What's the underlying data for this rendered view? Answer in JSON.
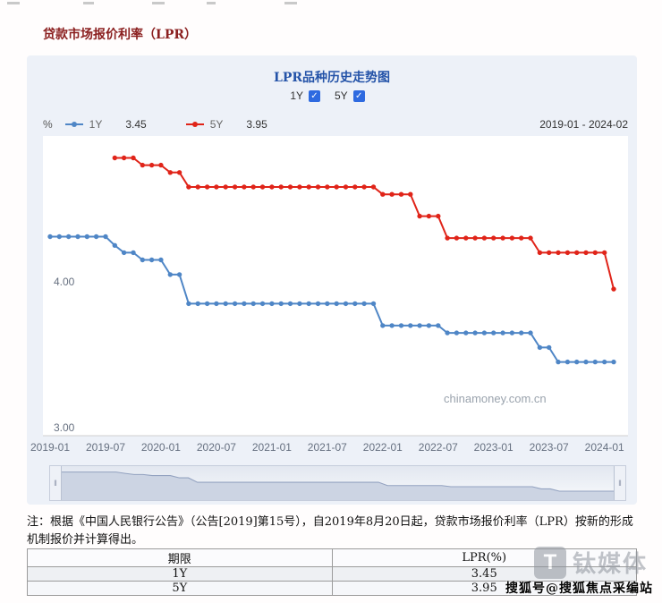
{
  "page": {
    "title": "贷款市场报价利率（LPR）",
    "note": "注：根据《中国人民银行公告》（公告[2019]第15号），自2019年8月20日起，贷款市场报价利率（LPR）按新的形成机制报价并计算得出。"
  },
  "chart": {
    "title": "LPR品种历史走势图",
    "unit": "%",
    "checkboxes": [
      {
        "label": "1Y",
        "checked": true
      },
      {
        "label": "5Y",
        "checked": true
      }
    ],
    "legend": [
      {
        "label": "1Y",
        "value": "3.45",
        "color": "#4f86c6"
      },
      {
        "label": "5Y",
        "value": "3.95",
        "color": "#e02419"
      }
    ],
    "date_range": "2019-01 - 2024-02",
    "watermark": "chinamoney.com.cn"
  },
  "chart_data": {
    "type": "line",
    "title": "LPR品种历史走势图",
    "xlabel": "",
    "ylabel": "%",
    "ylim": [
      2.95,
      5.0
    ],
    "y_ticks": [
      4.0,
      3.0
    ],
    "x_tick_labels": [
      "2019-01",
      "2019-07",
      "2020-01",
      "2020-07",
      "2021-01",
      "2021-07",
      "2022-01",
      "2022-07",
      "2023-01",
      "2023-07",
      "2024-01"
    ],
    "x": [
      "2019-01",
      "2019-02",
      "2019-03",
      "2019-04",
      "2019-05",
      "2019-06",
      "2019-07",
      "2019-08",
      "2019-09",
      "2019-10",
      "2019-11",
      "2019-12",
      "2020-01",
      "2020-02",
      "2020-03",
      "2020-04",
      "2020-05",
      "2020-06",
      "2020-07",
      "2020-08",
      "2020-09",
      "2020-10",
      "2020-11",
      "2020-12",
      "2021-01",
      "2021-02",
      "2021-03",
      "2021-04",
      "2021-05",
      "2021-06",
      "2021-07",
      "2021-08",
      "2021-09",
      "2021-10",
      "2021-11",
      "2021-12",
      "2022-01",
      "2022-02",
      "2022-03",
      "2022-04",
      "2022-05",
      "2022-06",
      "2022-07",
      "2022-08",
      "2022-09",
      "2022-10",
      "2022-11",
      "2022-12",
      "2023-01",
      "2023-02",
      "2023-03",
      "2023-04",
      "2023-05",
      "2023-06",
      "2023-07",
      "2023-08",
      "2023-09",
      "2023-10",
      "2023-11",
      "2023-12",
      "2024-01",
      "2024-02"
    ],
    "series": [
      {
        "name": "1Y",
        "color": "#4f86c6",
        "values": [
          4.31,
          4.31,
          4.31,
          4.31,
          4.31,
          4.31,
          4.31,
          4.25,
          4.2,
          4.2,
          4.15,
          4.15,
          4.15,
          4.05,
          4.05,
          3.85,
          3.85,
          3.85,
          3.85,
          3.85,
          3.85,
          3.85,
          3.85,
          3.85,
          3.85,
          3.85,
          3.85,
          3.85,
          3.85,
          3.85,
          3.85,
          3.85,
          3.85,
          3.85,
          3.85,
          3.85,
          3.7,
          3.7,
          3.7,
          3.7,
          3.7,
          3.7,
          3.7,
          3.65,
          3.65,
          3.65,
          3.65,
          3.65,
          3.65,
          3.65,
          3.65,
          3.65,
          3.65,
          3.55,
          3.55,
          3.45,
          3.45,
          3.45,
          3.45,
          3.45,
          3.45,
          3.45
        ]
      },
      {
        "name": "5Y",
        "color": "#e02419",
        "values": [
          null,
          null,
          null,
          null,
          null,
          null,
          null,
          4.85,
          4.85,
          4.85,
          4.8,
          4.8,
          4.8,
          4.75,
          4.75,
          4.65,
          4.65,
          4.65,
          4.65,
          4.65,
          4.65,
          4.65,
          4.65,
          4.65,
          4.65,
          4.65,
          4.65,
          4.65,
          4.65,
          4.65,
          4.65,
          4.65,
          4.65,
          4.65,
          4.65,
          4.65,
          4.6,
          4.6,
          4.6,
          4.6,
          4.45,
          4.45,
          4.45,
          4.3,
          4.3,
          4.3,
          4.3,
          4.3,
          4.3,
          4.3,
          4.3,
          4.3,
          4.3,
          4.2,
          4.2,
          4.2,
          4.2,
          4.2,
          4.2,
          4.2,
          4.2,
          3.95
        ]
      }
    ],
    "legend_position": "top",
    "grid": false
  },
  "table": {
    "headers": [
      "期限",
      "LPR(%)"
    ],
    "rows": [
      [
        "1Y",
        "3.45"
      ],
      [
        "5Y",
        "3.95"
      ]
    ]
  },
  "watermarks": {
    "tmt_letter": "T",
    "tmt_text": "钛媒体",
    "sohu": "搜狐号@搜狐焦点采编站"
  }
}
